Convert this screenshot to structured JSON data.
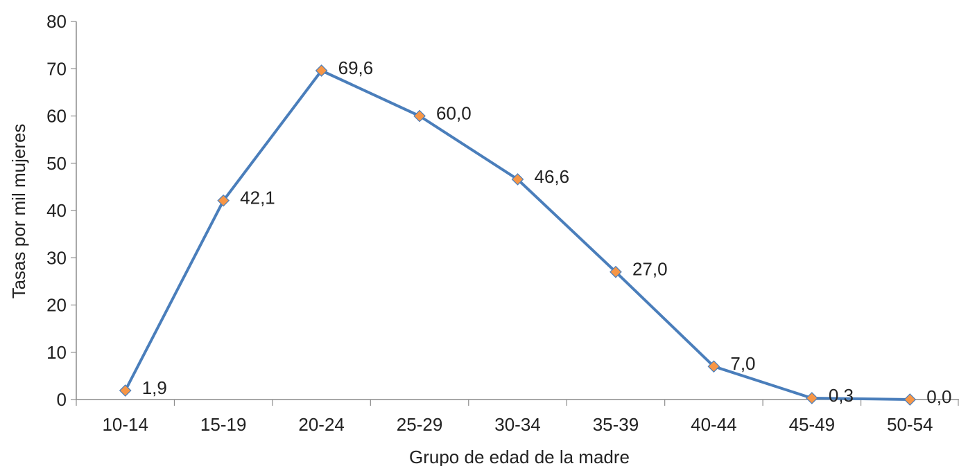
{
  "chart_data": {
    "type": "line",
    "title": "",
    "xlabel": "Grupo de edad de la madre",
    "ylabel": "Tasas  por mil mujeres",
    "categories": [
      "10-14",
      "15-19",
      "20-24",
      "25-29",
      "30-34",
      "35-39",
      "40-44",
      "45-49",
      "50-54"
    ],
    "series": [
      {
        "values": [
          1.9,
          42.1,
          69.6,
          60.0,
          46.6,
          27.0,
          7.0,
          0.3,
          0.0
        ],
        "labels": [
          "1,9",
          "42,1",
          "69,6",
          "60,0",
          "46,6",
          "27,0",
          "7,0",
          "0,3",
          "0,0"
        ],
        "line_color": "#4a7ebb",
        "marker_color": "#f79646",
        "marker_edge_color": "#4a7ebb",
        "marker": "diamond"
      }
    ],
    "ylim": [
      0,
      80
    ],
    "yticks": [
      0,
      10,
      20,
      30,
      40,
      50,
      60,
      70,
      80
    ],
    "grid": false,
    "legend": "none"
  }
}
